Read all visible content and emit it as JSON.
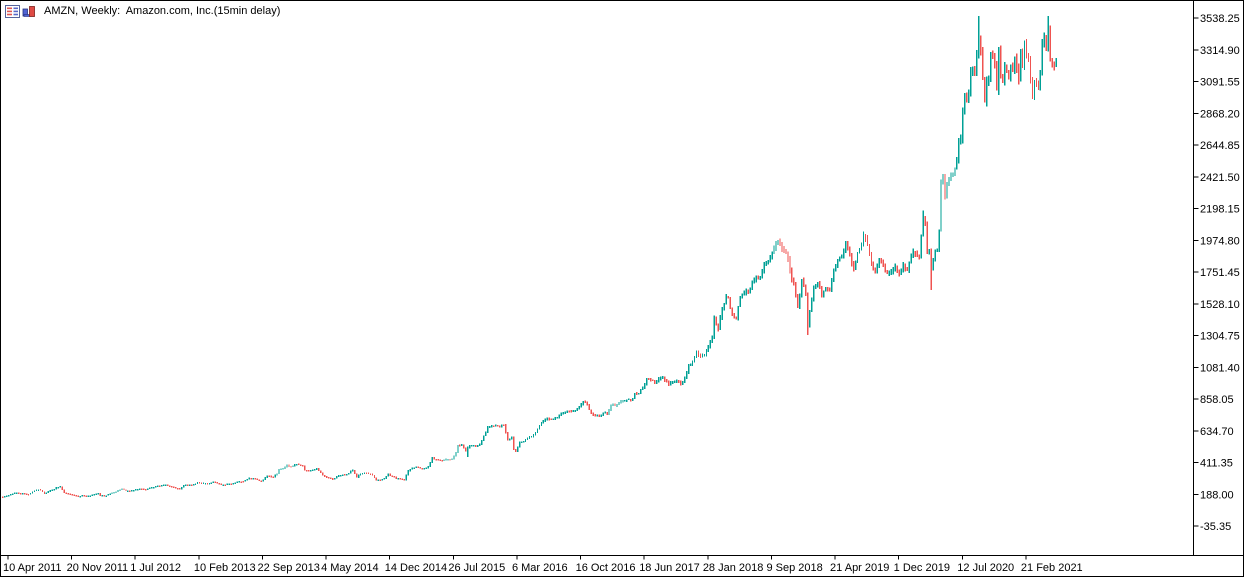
{
  "window": {
    "title": "AMZN, Weekly:  Amazon.com, Inc.(15min delay)",
    "icons": [
      {
        "name": "chart-list-icon"
      },
      {
        "name": "bar-chart-icon"
      }
    ],
    "colors": {
      "background": "#ffffff",
      "border": "#000000",
      "text": "#000000"
    }
  },
  "chart_data": {
    "type": "bar",
    "subtype": "ohlc-weekly-range-bars",
    "title": "AMZN, Weekly:  Amazon.com, Inc.(15min delay)",
    "symbol": "AMZN",
    "timeframe": "Weekly",
    "grid": false,
    "legend": "none",
    "up_color": "#00a096",
    "down_color": "#ef5350",
    "y_axis": {
      "side": "right",
      "top_value": 3538.25,
      "step": 223.35,
      "range": [
        -35.35,
        3538.25
      ],
      "labels": [
        "3538.25",
        "3314.90",
        "3091.55",
        "2868.20",
        "2644.85",
        "2421.50",
        "2198.15",
        "1974.80",
        "1751.45",
        "1528.10",
        "1304.75",
        "1081.40",
        "858.05",
        "634.70",
        "411.35",
        "188.00",
        "-35.35"
      ]
    },
    "x_axis": {
      "side": "bottom",
      "weeks_per_tick": 32,
      "first_tick_week": 3,
      "labels": [
        "10 Apr 2011",
        "20 Nov 2011",
        "1 Jul 2012",
        "10 Feb 2013",
        "22 Sep 2013",
        "4 May 2014",
        "14 Dec 2014",
        "26 Jul 2015",
        "6 Mar 2016",
        "16 Oct 2016",
        "18 Jun 2017",
        "28 Jan 2018",
        "9 Sep 2018",
        "21 Apr 2019",
        "1 Dec 2019",
        "12 Jul 2020",
        "21 Feb 2021"
      ]
    },
    "num_weeks": 531,
    "weekly_close_anchors": [
      [
        0,
        170
      ],
      [
        3,
        181
      ],
      [
        6,
        198
      ],
      [
        10,
        196
      ],
      [
        13,
        188
      ],
      [
        16,
        212
      ],
      [
        18,
        222
      ],
      [
        20,
        205
      ],
      [
        21,
        191
      ],
      [
        24,
        215
      ],
      [
        26,
        224
      ],
      [
        27,
        236
      ],
      [
        29,
        242
      ],
      [
        31,
        200
      ],
      [
        33,
        192
      ],
      [
        36,
        182
      ],
      [
        38,
        173
      ],
      [
        40,
        181
      ],
      [
        42,
        173
      ],
      [
        44,
        179
      ],
      [
        46,
        188
      ],
      [
        48,
        194
      ],
      [
        49,
        179
      ],
      [
        52,
        180
      ],
      [
        56,
        202
      ],
      [
        60,
        226
      ],
      [
        62,
        213
      ],
      [
        64,
        213
      ],
      [
        66,
        218
      ],
      [
        69,
        228
      ],
      [
        72,
        220
      ],
      [
        74,
        234
      ],
      [
        78,
        247
      ],
      [
        82,
        254
      ],
      [
        85,
        240
      ],
      [
        87,
        232
      ],
      [
        89,
        225
      ],
      [
        91,
        252
      ],
      [
        94,
        256
      ],
      [
        96,
        257
      ],
      [
        98,
        272
      ],
      [
        100,
        265
      ],
      [
        103,
        265
      ],
      [
        106,
        274
      ],
      [
        108,
        266
      ],
      [
        110,
        254
      ],
      [
        112,
        254
      ],
      [
        114,
        264
      ],
      [
        117,
        269
      ],
      [
        119,
        278
      ],
      [
        121,
        277
      ],
      [
        124,
        302
      ],
      [
        126,
        300
      ],
      [
        128,
        290
      ],
      [
        130,
        281
      ],
      [
        133,
        316
      ],
      [
        136,
        310
      ],
      [
        138,
        332
      ],
      [
        139,
        363
      ],
      [
        141,
        369
      ],
      [
        143,
        394
      ],
      [
        145,
        384
      ],
      [
        147,
        398
      ],
      [
        149,
        397
      ],
      [
        151,
        387
      ],
      [
        152,
        358
      ],
      [
        154,
        352
      ],
      [
        156,
        360
      ],
      [
        158,
        370
      ],
      [
        160,
        338
      ],
      [
        162,
        311
      ],
      [
        164,
        303
      ],
      [
        166,
        292
      ],
      [
        168,
        312
      ],
      [
        170,
        323
      ],
      [
        172,
        324
      ],
      [
        174,
        337
      ],
      [
        176,
        358
      ],
      [
        178,
        307
      ],
      [
        180,
        333
      ],
      [
        182,
        339
      ],
      [
        184,
        331
      ],
      [
        186,
        323
      ],
      [
        188,
        287
      ],
      [
        190,
        287
      ],
      [
        192,
        300
      ],
      [
        194,
        332
      ],
      [
        196,
        312
      ],
      [
        198,
        299
      ],
      [
        200,
        296
      ],
      [
        202,
        290
      ],
      [
        204,
        354
      ],
      [
        206,
        374
      ],
      [
        208,
        380
      ],
      [
        210,
        370
      ],
      [
        212,
        371
      ],
      [
        214,
        383
      ],
      [
        216,
        445
      ],
      [
        218,
        433
      ],
      [
        220,
        427
      ],
      [
        222,
        430
      ],
      [
        224,
        434
      ],
      [
        226,
        437
      ],
      [
        228,
        483
      ],
      [
        229,
        531
      ],
      [
        231,
        536
      ],
      [
        233,
        494
      ],
      [
        234,
        518
      ],
      [
        236,
        529
      ],
      [
        238,
        524
      ],
      [
        240,
        539
      ],
      [
        242,
        599
      ],
      [
        244,
        659
      ],
      [
        246,
        669
      ],
      [
        248,
        672
      ],
      [
        250,
        665
      ],
      [
        252,
        675
      ],
      [
        254,
        570
      ],
      [
        256,
        587
      ],
      [
        257,
        502
      ],
      [
        258,
        490
      ],
      [
        260,
        555
      ],
      [
        262,
        560
      ],
      [
        264,
        582
      ],
      [
        266,
        595
      ],
      [
        268,
        620
      ],
      [
        270,
        673
      ],
      [
        272,
        702
      ],
      [
        274,
        725
      ],
      [
        276,
        715
      ],
      [
        278,
        725
      ],
      [
        280,
        745
      ],
      [
        282,
        758
      ],
      [
        284,
        772
      ],
      [
        286,
        769
      ],
      [
        288,
        778
      ],
      [
        290,
        805
      ],
      [
        292,
        839
      ],
      [
        294,
        818
      ],
      [
        296,
        755
      ],
      [
        298,
        740
      ],
      [
        300,
        740
      ],
      [
        302,
        758
      ],
      [
        304,
        750
      ],
      [
        306,
        817
      ],
      [
        308,
        810
      ],
      [
        310,
        827
      ],
      [
        312,
        845
      ],
      [
        314,
        853
      ],
      [
        316,
        846
      ],
      [
        318,
        895
      ],
      [
        320,
        898
      ],
      [
        322,
        935
      ],
      [
        323,
        960
      ],
      [
        324,
        1000
      ],
      [
        326,
        987
      ],
      [
        328,
        968
      ],
      [
        330,
        1002
      ],
      [
        332,
        1014
      ],
      [
        333,
        988
      ],
      [
        335,
        958
      ],
      [
        337,
        978
      ],
      [
        339,
        986
      ],
      [
        341,
        965
      ],
      [
        343,
        1002
      ],
      [
        345,
        1100
      ],
      [
        347,
        1125
      ],
      [
        349,
        1186
      ],
      [
        351,
        1162
      ],
      [
        353,
        1168
      ],
      [
        355,
        1229
      ],
      [
        357,
        1294
      ],
      [
        358,
        1429
      ],
      [
        360,
        1350
      ],
      [
        362,
        1500
      ],
      [
        364,
        1578
      ],
      [
        365,
        1571
      ],
      [
        366,
        1495
      ],
      [
        367,
        1447
      ],
      [
        369,
        1430
      ],
      [
        371,
        1572
      ],
      [
        373,
        1602
      ],
      [
        375,
        1610
      ],
      [
        377,
        1677
      ],
      [
        379,
        1715
      ],
      [
        381,
        1710
      ],
      [
        383,
        1813
      ],
      [
        385,
        1823
      ],
      [
        387,
        1882
      ],
      [
        389,
        1952
      ],
      [
        390,
        1970
      ],
      [
        392,
        1915
      ],
      [
        394,
        1890
      ],
      [
        396,
        1764
      ],
      [
        398,
        1665
      ],
      [
        400,
        1512
      ],
      [
        402,
        1690
      ],
      [
        404,
        1591
      ],
      [
        405,
        1377
      ],
      [
        406,
        1478
      ],
      [
        408,
        1640
      ],
      [
        410,
        1670
      ],
      [
        412,
        1588
      ],
      [
        414,
        1632
      ],
      [
        416,
        1620
      ],
      [
        418,
        1764
      ],
      [
        420,
        1837
      ],
      [
        422,
        1861
      ],
      [
        424,
        1962
      ],
      [
        426,
        1869
      ],
      [
        428,
        1775
      ],
      [
        430,
        1887
      ],
      [
        432,
        1942
      ],
      [
        433,
        2011
      ],
      [
        435,
        1943
      ],
      [
        437,
        1807
      ],
      [
        439,
        1749
      ],
      [
        441,
        1833
      ],
      [
        443,
        1794
      ],
      [
        445,
        1740
      ],
      [
        447,
        1757
      ],
      [
        449,
        1791
      ],
      [
        451,
        1739
      ],
      [
        453,
        1801
      ],
      [
        455,
        1761
      ],
      [
        457,
        1869
      ],
      [
        459,
        1883
      ],
      [
        461,
        1861
      ],
      [
        462,
        2008
      ],
      [
        463,
        2134
      ],
      [
        464,
        2096
      ],
      [
        465,
        1884
      ],
      [
        466,
        1901
      ],
      [
        467,
        1785
      ],
      [
        468,
        1846
      ],
      [
        469,
        1900
      ],
      [
        470,
        1906
      ],
      [
        471,
        2042
      ],
      [
        472,
        2375
      ],
      [
        473,
        2410
      ],
      [
        474,
        2286
      ],
      [
        475,
        2379
      ],
      [
        476,
        2409
      ],
      [
        477,
        2436
      ],
      [
        478,
        2442
      ],
      [
        479,
        2483
      ],
      [
        480,
        2545
      ],
      [
        481,
        2675
      ],
      [
        482,
        2692
      ],
      [
        483,
        2890
      ],
      [
        484,
        3000
      ],
      [
        485,
        2961
      ],
      [
        486,
        3008
      ],
      [
        487,
        3164
      ],
      [
        488,
        3167
      ],
      [
        489,
        3148
      ],
      [
        490,
        3284
      ],
      [
        491,
        3401
      ],
      [
        492,
        3295
      ],
      [
        493,
        3116
      ],
      [
        494,
        2954
      ],
      [
        495,
        3095
      ],
      [
        496,
        3125
      ],
      [
        497,
        3286
      ],
      [
        498,
        3272
      ],
      [
        499,
        3204
      ],
      [
        500,
        3036
      ],
      [
        501,
        3311
      ],
      [
        502,
        3128
      ],
      [
        503,
        3099
      ],
      [
        504,
        3195
      ],
      [
        505,
        3162
      ],
      [
        506,
        3116
      ],
      [
        507,
        3201
      ],
      [
        508,
        3172
      ],
      [
        509,
        3256
      ],
      [
        510,
        3182
      ],
      [
        511,
        3104
      ],
      [
        512,
        3292
      ],
      [
        513,
        3206
      ],
      [
        514,
        3352
      ],
      [
        515,
        3277
      ],
      [
        516,
        3249
      ],
      [
        517,
        3092
      ],
      [
        518,
        3000
      ],
      [
        519,
        3089
      ],
      [
        520,
        3074
      ],
      [
        521,
        3052
      ],
      [
        522,
        3161
      ],
      [
        523,
        3372
      ],
      [
        524,
        3399
      ],
      [
        525,
        3340
      ],
      [
        526,
        3467
      ],
      [
        527,
        3244
      ],
      [
        528,
        3222
      ],
      [
        529,
        3203
      ],
      [
        530,
        3223
      ]
    ],
    "week_high_overrides": [
      [
        463,
        2185
      ],
      [
        491,
        3552
      ],
      [
        526,
        3554
      ]
    ],
    "week_low_overrides": [
      [
        405,
        1307
      ],
      [
        467,
        1626
      ],
      [
        234,
        451
      ]
    ]
  }
}
